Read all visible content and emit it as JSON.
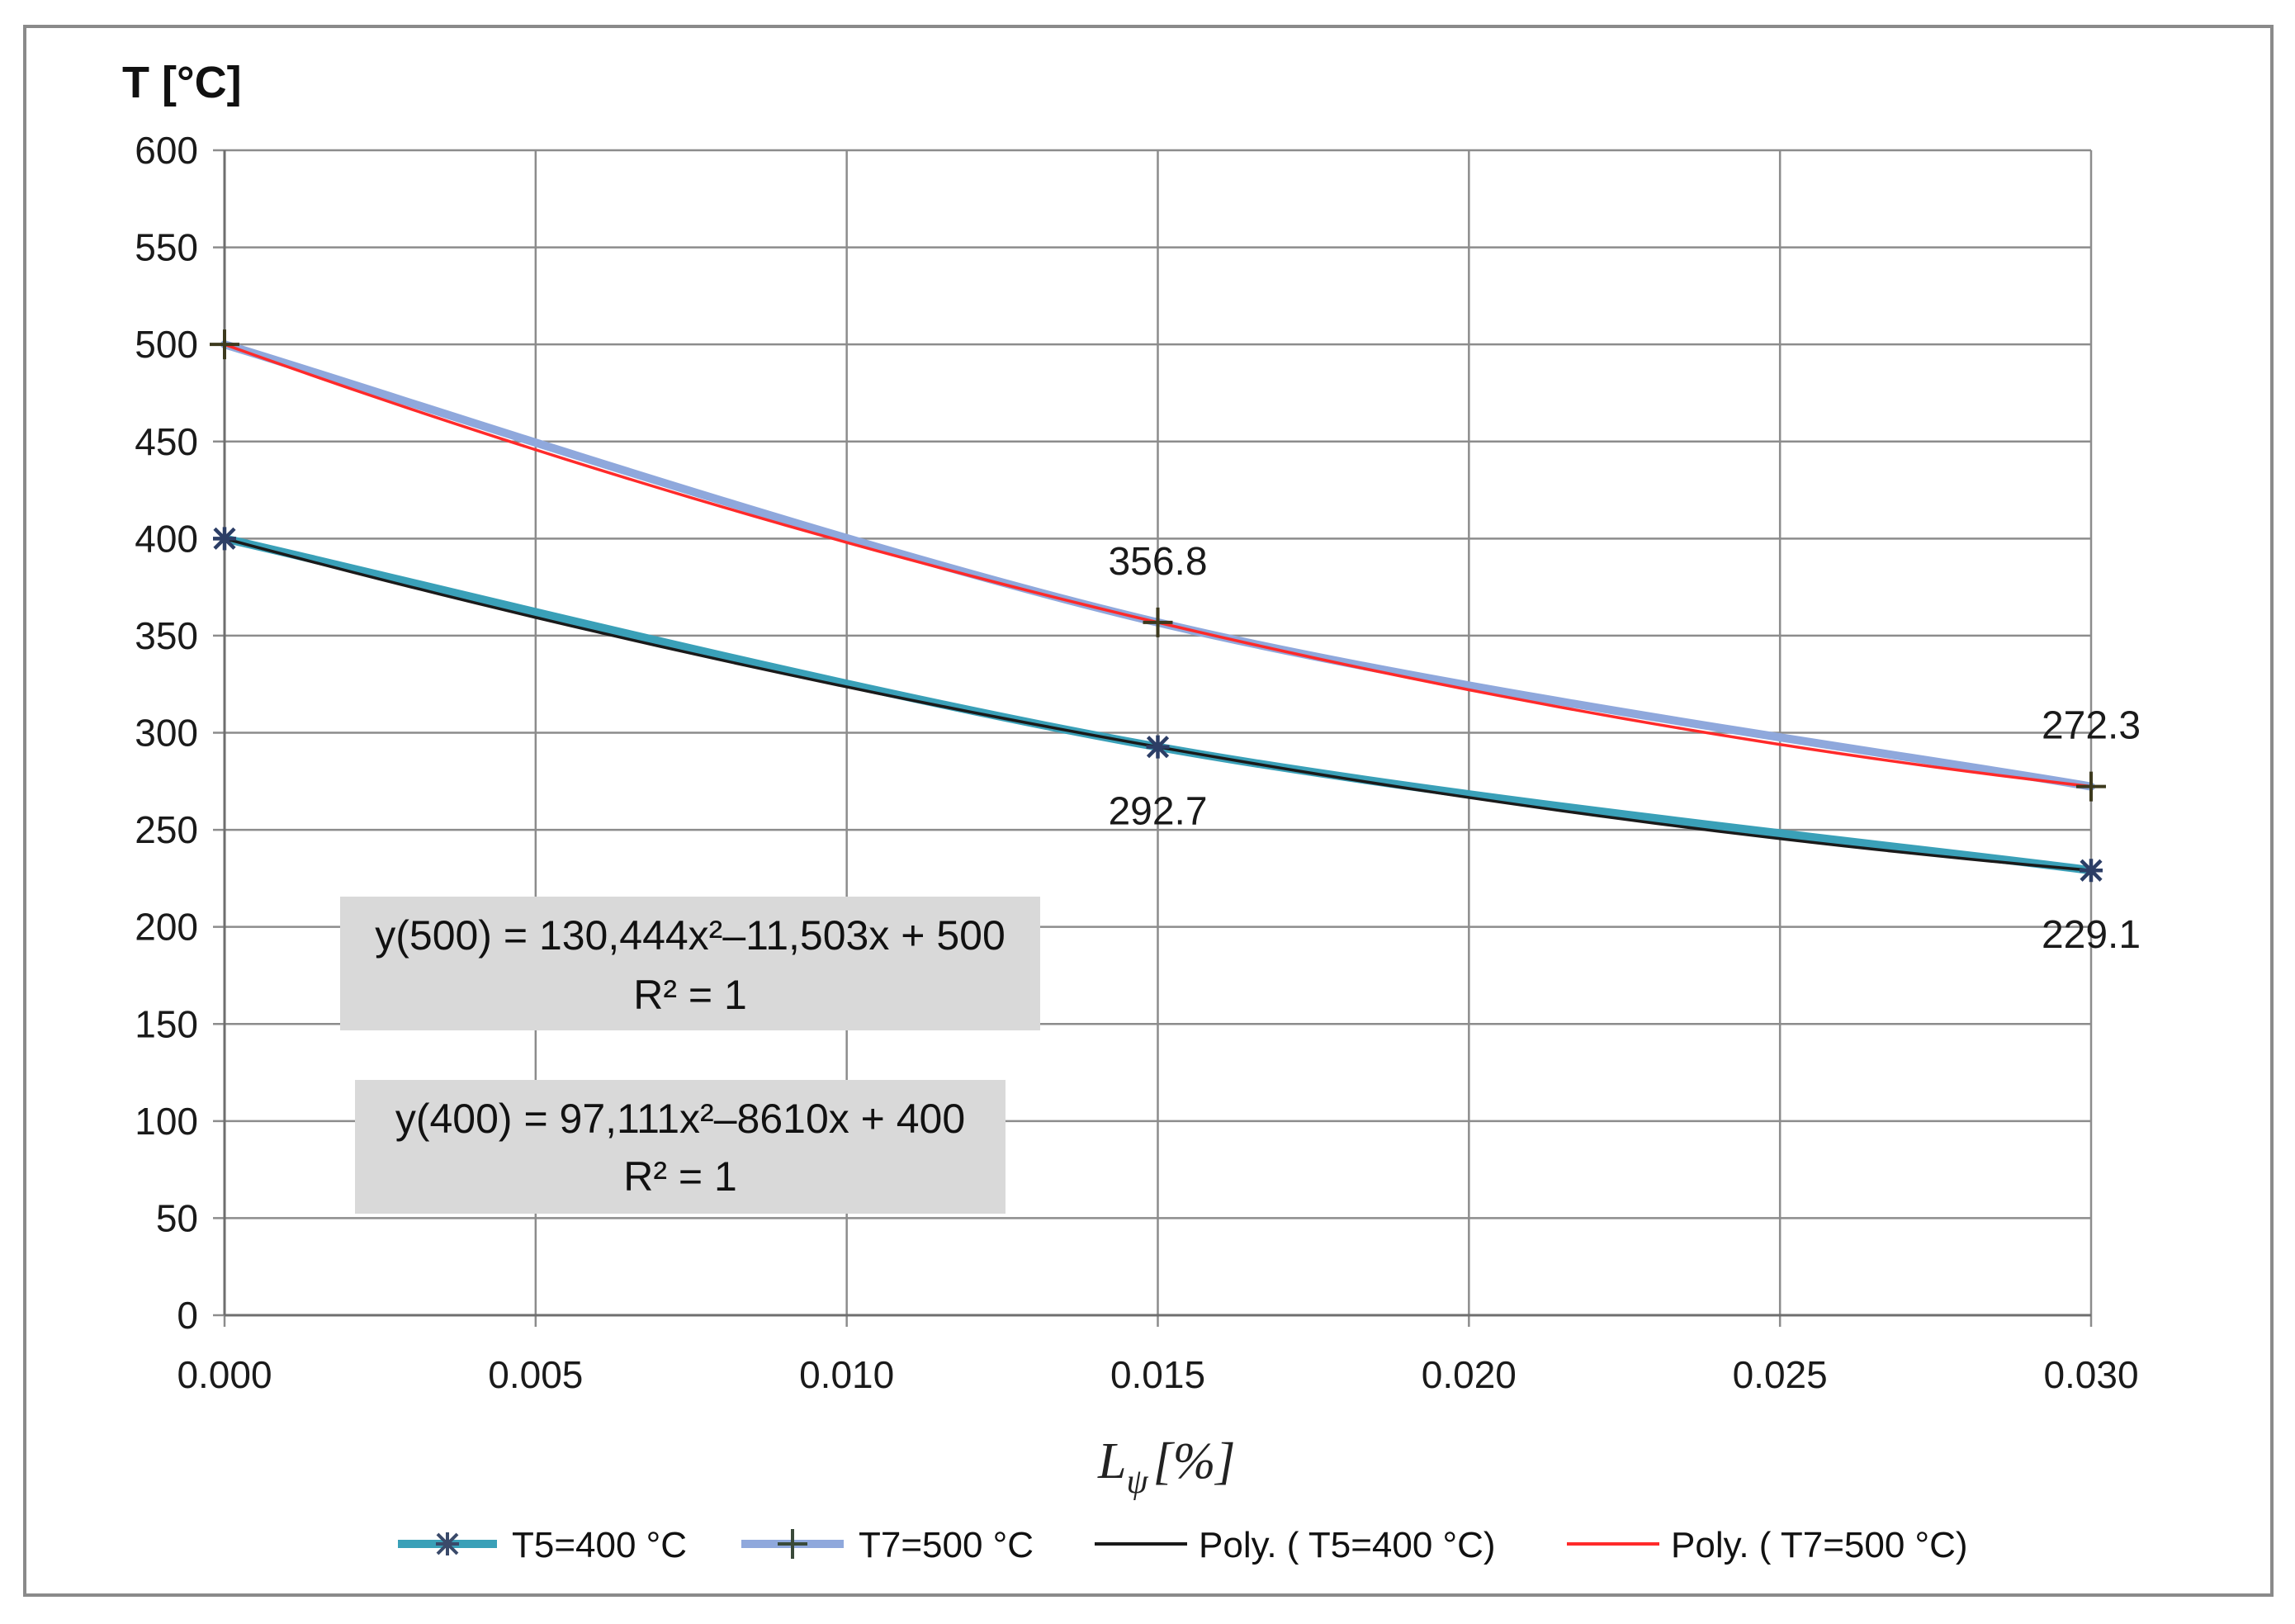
{
  "chart_data": {
    "type": "line",
    "ylabel": "T [°C]",
    "xlabel_main": "L",
    "xlabel_sub": "ψ",
    "xlabel_unit": "[%]",
    "xlim": [
      0.0,
      0.03
    ],
    "ylim": [
      0,
      600
    ],
    "grid": true,
    "legend_position": "bottom",
    "x": [
      0.0,
      0.015,
      0.03
    ],
    "x_ticks": [
      "0.000",
      "0.005",
      "0.010",
      "0.015",
      "0.020",
      "0.025",
      "0.030"
    ],
    "y_ticks": [
      "0",
      "50",
      "100",
      "150",
      "200",
      "250",
      "300",
      "350",
      "400",
      "450",
      "500",
      "550",
      "600"
    ],
    "series": [
      {
        "name": "T5=400 °C",
        "values": [
          400,
          292.7,
          229.1
        ],
        "color": "#3aa0b8",
        "marker": "asterisk"
      },
      {
        "name": "T7=500 °C",
        "values": [
          500,
          356.8,
          272.3
        ],
        "color": "#8fa8dc",
        "marker": "plus"
      },
      {
        "name": "Poly. ( T5=400 °C)",
        "trend": [
          400,
          -8610,
          97111
        ],
        "color": "#1a1a1a"
      },
      {
        "name": "Poly. ( T7=500 °C)",
        "trend": [
          500,
          -11503,
          130444
        ],
        "color": "#ff2a2a"
      }
    ],
    "data_labels": [
      {
        "text": "356.8",
        "x": 0.015,
        "y": 356.8,
        "position": "above"
      },
      {
        "text": "272.3",
        "x": 0.03,
        "y": 272.3,
        "position": "above"
      },
      {
        "text": "292.7",
        "x": 0.015,
        "y": 292.7,
        "position": "below"
      },
      {
        "text": "229.1",
        "x": 0.03,
        "y": 229.1,
        "position": "below"
      }
    ],
    "equations": [
      {
        "line1": "y(500) = 130,444x²–11,503x + 500",
        "line2": "R² = 1"
      },
      {
        "line1": "y(400) = 97,111x²–8610x + 400",
        "line2": "R² = 1"
      }
    ]
  }
}
